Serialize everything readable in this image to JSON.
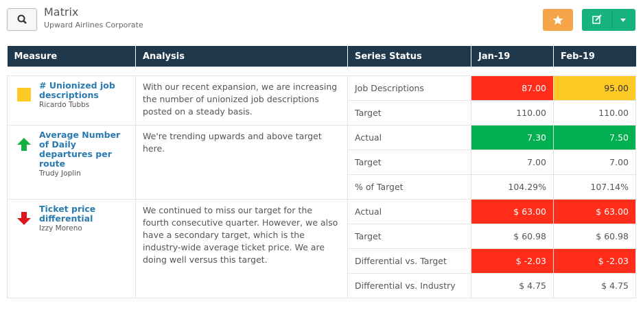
{
  "header": {
    "title": "Matrix",
    "subtitle": "Upward Airlines Corporate"
  },
  "table": {
    "columns": [
      "Measure",
      "Analysis",
      "Series Status",
      "Jan-19",
      "Feb-19"
    ],
    "measures": [
      {
        "name": "# Unionized job descriptions",
        "owner": "Ricardo Tubbs",
        "analysis": "With our recent expansion, we are increasing the number of unionized job descriptions posted on a steady basis.",
        "rows": [
          [
            "Job Descriptions",
            "87.00",
            "95.00"
          ],
          [
            "Target",
            "110.00",
            "110.00"
          ]
        ]
      },
      {
        "name": "Average Number of Daily departures per route",
        "owner": "Trudy Joplin",
        "analysis": "We're trending upwards and above target here.",
        "rows": [
          [
            "Actual",
            "7.30",
            "7.50"
          ],
          [
            "Target",
            "7.00",
            "7.00"
          ],
          [
            "% of Target",
            "104.29%",
            "107.14%"
          ]
        ]
      },
      {
        "name": "Ticket price differential",
        "owner": "Izzy Moreno",
        "analysis": "We continued to miss our target for the fourth consecutive quarter. However, we also have a  secondary target, which is the industry-wide average ticket price.  We are doing well versus this target.",
        "rows": [
          [
            "Actual",
            "$ 63.00",
            "$ 63.00"
          ],
          [
            "Target",
            "$ 60.98",
            "$ 60.98"
          ],
          [
            "Differential vs. Target",
            "$ -2.03",
            "$ -2.03"
          ],
          [
            "Differential vs. Industry",
            "$ 4.75",
            "$ 4.75"
          ]
        ]
      }
    ]
  }
}
